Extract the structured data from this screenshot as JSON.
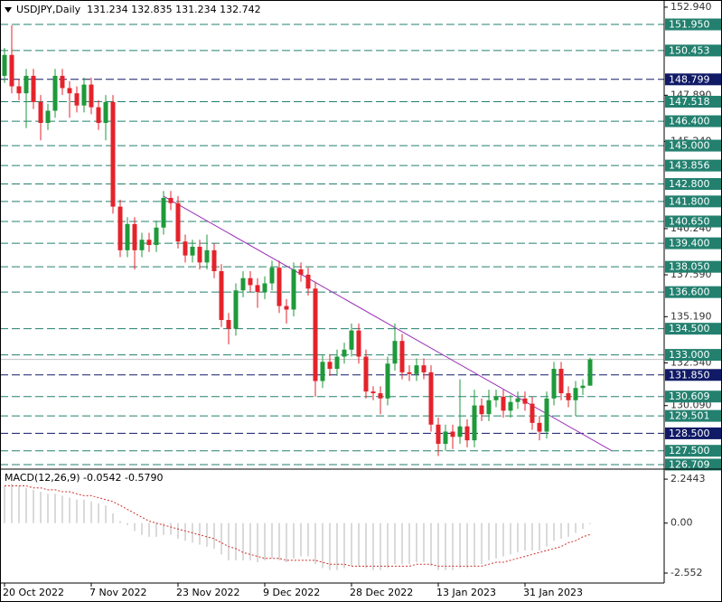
{
  "chart_data": [
    {
      "type": "candlestick",
      "title": "USDJPY,Daily  131.234 132.835 131.234 132.742",
      "categories": [
        "20 Oct 2022",
        null,
        null,
        null,
        null,
        null,
        null,
        null,
        null,
        null,
        null,
        null,
        "7 Nov 2022",
        null,
        null,
        null,
        null,
        null,
        null,
        null,
        null,
        null,
        null,
        null,
        "23 Nov 2022",
        null,
        null,
        null,
        null,
        null,
        null,
        null,
        null,
        null,
        null,
        null,
        "9 Dec 2022",
        null,
        null,
        null,
        null,
        null,
        null,
        null,
        null,
        null,
        null,
        null,
        "28 Dec 2022",
        null,
        null,
        null,
        null,
        null,
        null,
        null,
        null,
        null,
        null,
        null,
        "13 Jan 2023",
        null,
        null,
        null,
        null,
        null,
        null,
        null,
        null,
        null,
        null,
        null,
        "31 Jan 2023",
        null,
        null,
        null,
        null,
        null,
        null,
        null,
        null,
        null
      ],
      "open": [
        149.0,
        150.2,
        148.4,
        148.0,
        149.0,
        147.5,
        146.3,
        147.0,
        149.0,
        148.3,
        148.0,
        147.3,
        148.5,
        147.2,
        146.3,
        147.5,
        141.5,
        139.0,
        140.5,
        139.0,
        139.6,
        139.3,
        140.3,
        142.0,
        141.7,
        139.5,
        138.7,
        139.2,
        138.3,
        139.0,
        137.8,
        135.0,
        134.5,
        136.7,
        137.4,
        137.0,
        136.6,
        137.1,
        138.0,
        135.8,
        135.6,
        137.9,
        137.6,
        136.8,
        131.5,
        132.6,
        132.2,
        132.9,
        133.3,
        134.4,
        132.9,
        130.9,
        130.8,
        130.5,
        132.5,
        133.8,
        132.0,
        131.9,
        132.4,
        132.0,
        129.0,
        127.9,
        128.6,
        128.3,
        128.9,
        128.1,
        130.1,
        129.6,
        130.4,
        130.6,
        129.8,
        130.3,
        130.5,
        130.2,
        129.1,
        128.6,
        130.5,
        132.2,
        130.8,
        130.4,
        131.1,
        131.234
      ],
      "high": [
        150.6,
        151.9,
        148.8,
        149.4,
        149.4,
        147.9,
        147.4,
        149.4,
        149.4,
        148.7,
        148.4,
        148.9,
        148.9,
        147.6,
        147.9,
        147.9,
        141.9,
        140.9,
        140.9,
        140.0,
        140.0,
        140.7,
        142.4,
        142.4,
        142.1,
        139.9,
        139.6,
        139.6,
        139.9,
        139.4,
        138.2,
        135.4,
        137.1,
        137.8,
        137.8,
        137.4,
        137.5,
        138.4,
        138.4,
        136.2,
        138.3,
        138.3,
        138.0,
        137.2,
        133.0,
        133.0,
        133.3,
        133.7,
        134.8,
        134.8,
        133.3,
        131.2,
        131.2,
        132.9,
        134.8,
        134.2,
        132.4,
        132.8,
        132.8,
        132.4,
        129.4,
        129.0,
        129.0,
        131.6,
        129.3,
        131.0,
        130.5,
        131.0,
        131.0,
        131.0,
        130.7,
        130.9,
        130.9,
        130.6,
        129.5,
        130.9,
        132.6,
        132.6,
        131.2,
        131.5,
        131.6,
        132.835
      ],
      "low": [
        148.6,
        148.0,
        147.6,
        146.0,
        147.1,
        145.3,
        145.9,
        146.6,
        147.9,
        146.6,
        146.9,
        146.9,
        146.8,
        145.9,
        145.3,
        141.1,
        138.6,
        138.6,
        137.9,
        138.6,
        138.9,
        138.9,
        139.9,
        141.3,
        139.1,
        138.3,
        138.3,
        137.9,
        137.9,
        137.4,
        134.6,
        133.6,
        134.1,
        136.3,
        136.6,
        135.7,
        136.2,
        136.7,
        135.4,
        134.8,
        135.2,
        137.2,
        136.4,
        130.6,
        131.1,
        131.8,
        131.8,
        132.5,
        132.9,
        132.5,
        130.5,
        130.4,
        129.6,
        130.1,
        132.1,
        131.6,
        131.5,
        131.5,
        131.6,
        128.6,
        127.2,
        127.5,
        127.6,
        127.9,
        127.7,
        127.7,
        129.2,
        129.2,
        130.0,
        129.4,
        129.4,
        129.9,
        129.8,
        128.7,
        128.1,
        128.2,
        130.1,
        130.4,
        130.0,
        129.5,
        130.7,
        131.234
      ],
      "close": [
        150.2,
        148.4,
        148.0,
        149.0,
        147.5,
        146.3,
        147.0,
        149.0,
        148.3,
        148.0,
        147.3,
        148.5,
        147.2,
        146.3,
        147.5,
        141.5,
        139.0,
        140.5,
        139.0,
        139.6,
        139.3,
        140.3,
        142.0,
        141.7,
        139.5,
        138.7,
        139.2,
        138.3,
        139.0,
        137.8,
        135.0,
        134.5,
        136.7,
        137.4,
        137.0,
        136.6,
        137.1,
        138.0,
        135.8,
        135.6,
        137.9,
        137.6,
        136.8,
        131.5,
        132.6,
        132.2,
        132.9,
        133.3,
        134.4,
        132.9,
        130.9,
        130.8,
        130.5,
        132.5,
        133.8,
        132.0,
        131.9,
        132.4,
        132.0,
        129.0,
        127.9,
        128.6,
        128.3,
        128.9,
        128.1,
        130.1,
        129.6,
        130.4,
        130.6,
        129.8,
        130.3,
        130.5,
        130.2,
        129.1,
        128.6,
        130.5,
        132.2,
        130.8,
        130.4,
        131.1,
        131.234,
        132.742
      ],
      "up_color": "#1e9a3a",
      "down_color": "#e4232b",
      "ylim": [
        126.5,
        153.35
      ],
      "yticks": [
        {
          "value": 152.94,
          "label": "152.940"
        },
        {
          "value": 147.89,
          "label": "147.890"
        },
        {
          "value": 145.24,
          "label": "145.240"
        },
        {
          "value": 140.24,
          "label": "140.240"
        },
        {
          "value": 137.59,
          "label": "137.590"
        },
        {
          "value": 135.19,
          "label": "135.190"
        },
        {
          "value": 132.54,
          "label": "132.540"
        },
        {
          "value": 130.09,
          "label": "130.090"
        }
      ],
      "levels": [
        {
          "value": 151.95,
          "label": "151.950",
          "color": "#23806f"
        },
        {
          "value": 150.453,
          "label": "150.453",
          "color": "#23806f"
        },
        {
          "value": 148.799,
          "label": "148.799",
          "color": "#101a66"
        },
        {
          "value": 147.518,
          "label": "147.518",
          "color": "#23806f"
        },
        {
          "value": 146.4,
          "label": "146.400",
          "color": "#23806f"
        },
        {
          "value": 145.0,
          "label": "145.000",
          "color": "#23806f"
        },
        {
          "value": 143.856,
          "label": "143.856",
          "color": "#23806f"
        },
        {
          "value": 142.8,
          "label": "142.800",
          "color": "#23806f"
        },
        {
          "value": 141.8,
          "label": "141.800",
          "color": "#23806f"
        },
        {
          "value": 140.65,
          "label": "140.650",
          "color": "#23806f"
        },
        {
          "value": 139.4,
          "label": "139.400",
          "color": "#23806f"
        },
        {
          "value": 138.05,
          "label": "138.050",
          "color": "#23806f"
        },
        {
          "value": 136.6,
          "label": "136.600",
          "color": "#23806f"
        },
        {
          "value": 134.5,
          "label": "134.500",
          "color": "#23806f"
        },
        {
          "value": 133.0,
          "label": "133.000",
          "color": "#23806f"
        },
        {
          "value": 131.85,
          "label": "131.850",
          "color": "#101a66"
        },
        {
          "value": 130.609,
          "label": "130.609",
          "color": "#23806f"
        },
        {
          "value": 129.501,
          "label": "129.501",
          "color": "#23806f"
        },
        {
          "value": 128.5,
          "label": "128.500",
          "color": "#101a66"
        },
        {
          "value": 127.5,
          "label": "127.500",
          "color": "#23806f"
        },
        {
          "value": 126.709,
          "label": "126.709",
          "color": "#23806f"
        }
      ],
      "trendline": {
        "start_index": 22,
        "start": 142.1,
        "end_index": 84,
        "end": 127.5,
        "color": "#9b30b8"
      },
      "bid_line": 132.742
    },
    {
      "type": "macd",
      "title": "MACD(12,26,9) -0.0542 -0.5790",
      "values": [
        1.9,
        2.0,
        1.9,
        1.8,
        1.7,
        1.6,
        1.5,
        1.5,
        1.4,
        1.3,
        1.2,
        1.2,
        1.1,
        1.0,
        0.9,
        0.5,
        0.1,
        -0.1,
        -0.4,
        -0.6,
        -0.7,
        -0.7,
        -0.6,
        -0.6,
        -0.8,
        -0.9,
        -1.0,
        -1.1,
        -1.2,
        -1.3,
        -1.6,
        -1.9,
        -1.9,
        -1.9,
        -1.9,
        -2.0,
        -1.9,
        -1.8,
        -1.9,
        -2.0,
        -1.8,
        -1.7,
        -1.7,
        -2.1,
        -2.3,
        -2.4,
        -2.4,
        -2.3,
        -2.2,
        -2.2,
        -2.3,
        -2.4,
        -2.4,
        -2.3,
        -2.1,
        -2.1,
        -2.1,
        -2.0,
        -2.0,
        -2.2,
        -2.4,
        -2.4,
        -2.4,
        -2.3,
        -2.3,
        -2.2,
        -2.1,
        -1.9,
        -1.8,
        -1.7,
        -1.6,
        -1.5,
        -1.4,
        -1.4,
        -1.4,
        -1.2,
        -0.9,
        -0.8,
        -0.7,
        -0.5,
        -0.3,
        -0.0542
      ],
      "signal": [
        1.9,
        1.9,
        1.9,
        1.9,
        1.8,
        1.8,
        1.7,
        1.7,
        1.6,
        1.6,
        1.5,
        1.4,
        1.4,
        1.3,
        1.2,
        1.1,
        0.9,
        0.7,
        0.5,
        0.3,
        0.1,
        0.0,
        -0.1,
        -0.2,
        -0.3,
        -0.4,
        -0.5,
        -0.6,
        -0.7,
        -0.8,
        -1.0,
        -1.2,
        -1.3,
        -1.5,
        -1.6,
        -1.7,
        -1.8,
        -1.8,
        -1.8,
        -1.9,
        -1.9,
        -1.9,
        -1.9,
        -1.9,
        -2.0,
        -2.1,
        -2.1,
        -2.1,
        -2.2,
        -2.2,
        -2.2,
        -2.2,
        -2.2,
        -2.2,
        -2.2,
        -2.2,
        -2.2,
        -2.1,
        -2.1,
        -2.1,
        -2.2,
        -2.2,
        -2.2,
        -2.2,
        -2.2,
        -2.2,
        -2.2,
        -2.1,
        -2.0,
        -2.0,
        -1.9,
        -1.8,
        -1.7,
        -1.6,
        -1.5,
        -1.4,
        -1.3,
        -1.2,
        -1.0,
        -0.9,
        -0.7,
        -0.579
      ],
      "color": "#b4b4b4",
      "signal_color": "#d0312d",
      "ylim": [
        -3.06,
        2.71
      ],
      "yticks": [
        2.2443,
        {
          "value": 0,
          "label": "0.00"
        },
        -2.552
      ]
    }
  ]
}
